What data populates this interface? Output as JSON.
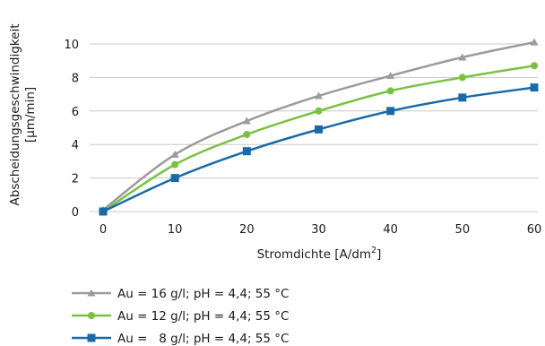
{
  "chart_data": {
    "type": "line",
    "title": "",
    "xlabel": "Stromdichte [A/dm",
    "xlabel_sup": "2",
    "xlabel_suffix": "]",
    "ylabel_line1": "Abscheidungsgeschwindigkeit",
    "ylabel_line2": "[µm/min]",
    "xlim": [
      0,
      60
    ],
    "ylim": [
      0,
      10
    ],
    "x_ticks": [
      0,
      10,
      20,
      30,
      40,
      50,
      60
    ],
    "y_ticks": [
      0,
      2,
      4,
      6,
      8,
      10
    ],
    "grid": "horizontal",
    "legend_position": "bottom-left",
    "series": [
      {
        "name": "Au = 16 g/l; pH = 4,4; 55 °C",
        "color": "#9b9b9b",
        "marker": "triangle",
        "x": [
          0,
          10,
          20,
          30,
          40,
          50,
          60
        ],
        "y": [
          0.1,
          3.4,
          5.4,
          6.9,
          8.1,
          9.2,
          10.1
        ]
      },
      {
        "name": "Au = 12 g/l; pH = 4,4; 55 °C",
        "color": "#7ac143",
        "marker": "circle",
        "x": [
          0,
          10,
          20,
          30,
          40,
          50,
          60
        ],
        "y": [
          0.0,
          2.8,
          4.6,
          6.0,
          7.2,
          8.0,
          8.7
        ]
      },
      {
        "name": "Au =   8 g/l; pH = 4,4; 55 °C",
        "color": "#1a6aa8",
        "marker": "square",
        "x": [
          0,
          10,
          20,
          30,
          40,
          50,
          60
        ],
        "y": [
          0.0,
          2.0,
          3.6,
          4.9,
          6.0,
          6.8,
          7.4
        ]
      }
    ]
  }
}
